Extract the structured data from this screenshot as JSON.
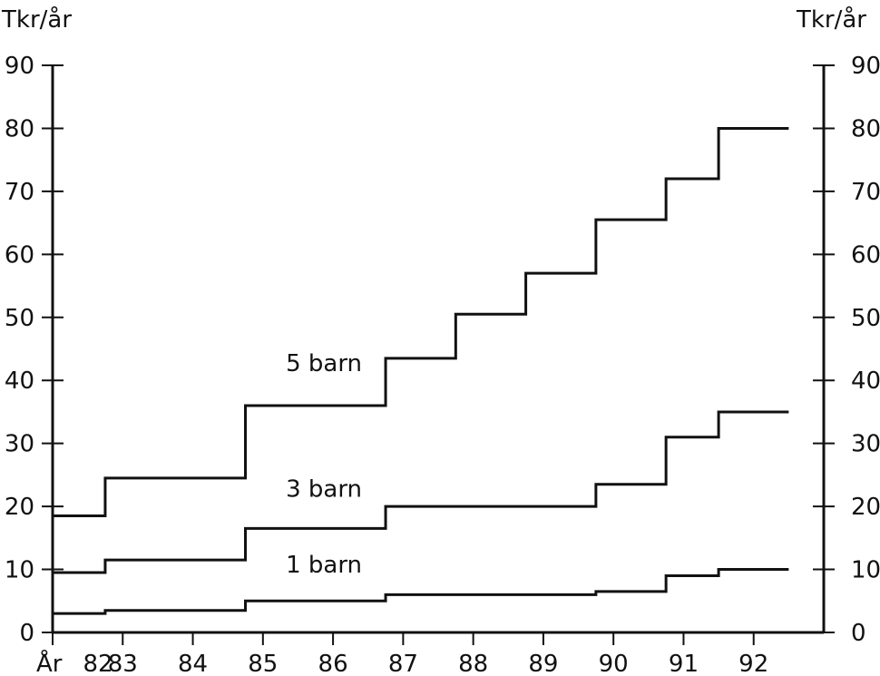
{
  "chart_data": {
    "type": "line",
    "title": "",
    "ylabel_left": "Tkr/år",
    "ylabel_right": "Tkr/år",
    "xlabel": "År",
    "ylim": [
      0,
      90
    ],
    "yticks": [
      0,
      10,
      20,
      30,
      40,
      50,
      60,
      70,
      80,
      90
    ],
    "xlim": [
      82,
      93
    ],
    "xticks": [
      82,
      83,
      84,
      85,
      86,
      87,
      88,
      89,
      90,
      91,
      92
    ],
    "xtick_labels": [
      "82",
      "83",
      "84",
      "85",
      "86",
      "87",
      "88",
      "89",
      "90",
      "91",
      "92"
    ],
    "step": "post",
    "grid": false,
    "series": [
      {
        "name": "5 barn",
        "x": [
          82,
          82.75,
          84.75,
          86.75,
          87.75,
          88.75,
          89.75,
          90.75,
          91.5,
          92.5
        ],
        "y": [
          18.5,
          24.5,
          36,
          43.5,
          50.5,
          57,
          65.5,
          72,
          80,
          80
        ]
      },
      {
        "name": "3 barn",
        "x": [
          82,
          82.75,
          84.75,
          86.75,
          89.75,
          90.75,
          91.5,
          92.5
        ],
        "y": [
          9.5,
          11.5,
          16.5,
          20,
          23.5,
          31,
          35,
          35
        ]
      },
      {
        "name": "1 barn",
        "x": [
          82,
          82.75,
          84.75,
          86.75,
          89.75,
          90.75,
          91.5,
          92.5
        ],
        "y": [
          3,
          3.5,
          5,
          6,
          6.5,
          9,
          10,
          10
        ]
      }
    ]
  }
}
